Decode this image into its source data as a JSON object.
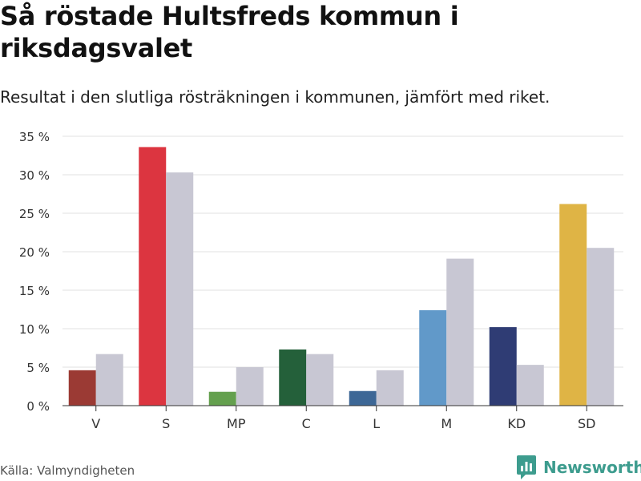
{
  "title": "Så röstade Hultsfreds kommun i riksdagsvalet",
  "subtitle": "Resultat i den slutliga rösträkningen i kommunen, jämfört med riket.",
  "source": "Källa: Valmyndigheten",
  "brand": {
    "name": "Newsworthy",
    "logo_icon": "newsworthy-logo-icon"
  },
  "chart_data": {
    "type": "bar",
    "categories": [
      "V",
      "S",
      "MP",
      "C",
      "L",
      "M",
      "KD",
      "SD"
    ],
    "series": [
      {
        "values": [
          4.6,
          33.6,
          1.8,
          7.3,
          1.9,
          12.4,
          10.2,
          26.2
        ],
        "colors": [
          "#9b3a34",
          "#dc3540",
          "#64a04e",
          "#24603a",
          "#3d6796",
          "#6199c9",
          "#2f3c74",
          "#dfb445"
        ]
      },
      {
        "values": [
          6.7,
          30.3,
          5.0,
          6.7,
          4.6,
          19.1,
          5.3,
          20.5
        ],
        "color": "#c8c7d3"
      }
    ],
    "yticks": [
      "0 %",
      "5 %",
      "10 %",
      "15 %",
      "20 %",
      "25 %",
      "30 %",
      "35 %"
    ],
    "ylim": [
      0,
      35
    ],
    "grid": true,
    "legend": "none"
  }
}
